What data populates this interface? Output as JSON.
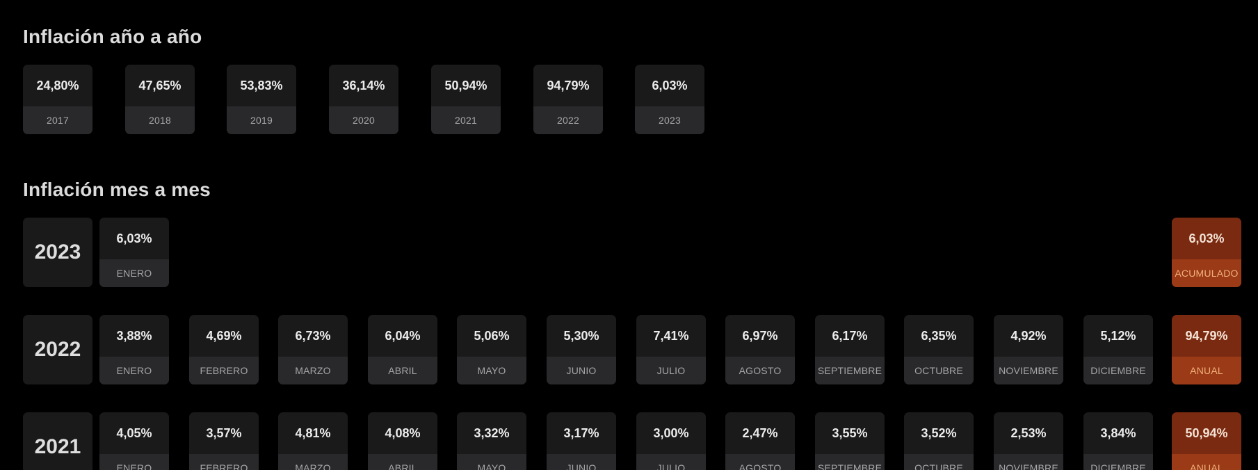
{
  "yearly": {
    "title": "Inflación año a año",
    "items": [
      {
        "value": "24,80%",
        "year": "2017"
      },
      {
        "value": "47,65%",
        "year": "2018"
      },
      {
        "value": "53,83%",
        "year": "2019"
      },
      {
        "value": "36,14%",
        "year": "2020"
      },
      {
        "value": "50,94%",
        "year": "2021"
      },
      {
        "value": "94,79%",
        "year": "2022"
      },
      {
        "value": "6,03%",
        "year": "2023"
      }
    ]
  },
  "monthly": {
    "title": "Inflación mes a mes",
    "rows": [
      {
        "year": "2023",
        "months": [
          {
            "value": "6,03%",
            "label": "ENERO"
          }
        ],
        "summary": {
          "value": "6,03%",
          "label": "ACUMULADO"
        }
      },
      {
        "year": "2022",
        "months": [
          {
            "value": "3,88%",
            "label": "ENERO"
          },
          {
            "value": "4,69%",
            "label": "FEBRERO"
          },
          {
            "value": "6,73%",
            "label": "MARZO"
          },
          {
            "value": "6,04%",
            "label": "ABRIL"
          },
          {
            "value": "5,06%",
            "label": "MAYO"
          },
          {
            "value": "5,30%",
            "label": "JUNIO"
          },
          {
            "value": "7,41%",
            "label": "JULIO"
          },
          {
            "value": "6,97%",
            "label": "AGOSTO"
          },
          {
            "value": "6,17%",
            "label": "SEPTIEMBRE"
          },
          {
            "value": "6,35%",
            "label": "OCTUBRE"
          },
          {
            "value": "4,92%",
            "label": "NOVIEMBRE"
          },
          {
            "value": "5,12%",
            "label": "DICIEMBRE"
          }
        ],
        "summary": {
          "value": "94,79%",
          "label": "ANUAL"
        }
      },
      {
        "year": "2021",
        "months": [
          {
            "value": "4,05%",
            "label": "ENERO"
          },
          {
            "value": "3,57%",
            "label": "FEBRERO"
          },
          {
            "value": "4,81%",
            "label": "MARZO"
          },
          {
            "value": "4,08%",
            "label": "ABRIL"
          },
          {
            "value": "3,32%",
            "label": "MAYO"
          },
          {
            "value": "3,17%",
            "label": "JUNIO"
          },
          {
            "value": "3,00%",
            "label": "JULIO"
          },
          {
            "value": "2,47%",
            "label": "AGOSTO"
          },
          {
            "value": "3,55%",
            "label": "SEPTIEMBRE"
          },
          {
            "value": "3,52%",
            "label": "OCTUBRE"
          },
          {
            "value": "2,53%",
            "label": "NOVIEMBRE"
          },
          {
            "value": "3,84%",
            "label": "DICIEMBRE"
          }
        ],
        "summary": {
          "value": "50,94%",
          "label": "ANUAL"
        }
      }
    ]
  },
  "colors": {
    "background": "#000000",
    "card": "#1a1a1b",
    "card_label": "#29292b",
    "accent": "#7a2a10",
    "accent_label": "#9a3a17",
    "accent_text": "#f2b07a"
  }
}
